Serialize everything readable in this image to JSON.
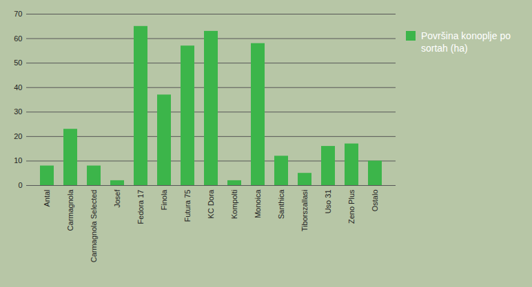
{
  "chart_data": {
    "type": "bar",
    "categories": [
      "Antal",
      "Carmagnola",
      "Carmagnola Selected",
      "Josef",
      "Fedora 17",
      "Finola",
      "Futura 75",
      "KC Dora",
      "Kompolti",
      "Monoica",
      "Santhica",
      "Tiborszallasi",
      "Uso 31",
      "Zeno Plus",
      "Ostalo"
    ],
    "series": [
      {
        "name": "Površina konoplje po sortah (ha)",
        "color": "#3cb54a",
        "values": [
          8,
          23,
          8,
          2,
          65,
          37,
          57,
          63,
          2,
          58,
          12,
          5,
          16,
          17,
          10
        ]
      }
    ],
    "ylim": [
      0,
      70
    ],
    "yticks": [
      0,
      10,
      20,
      30,
      40,
      50,
      60,
      70
    ],
    "grid": true,
    "legend": "right"
  }
}
